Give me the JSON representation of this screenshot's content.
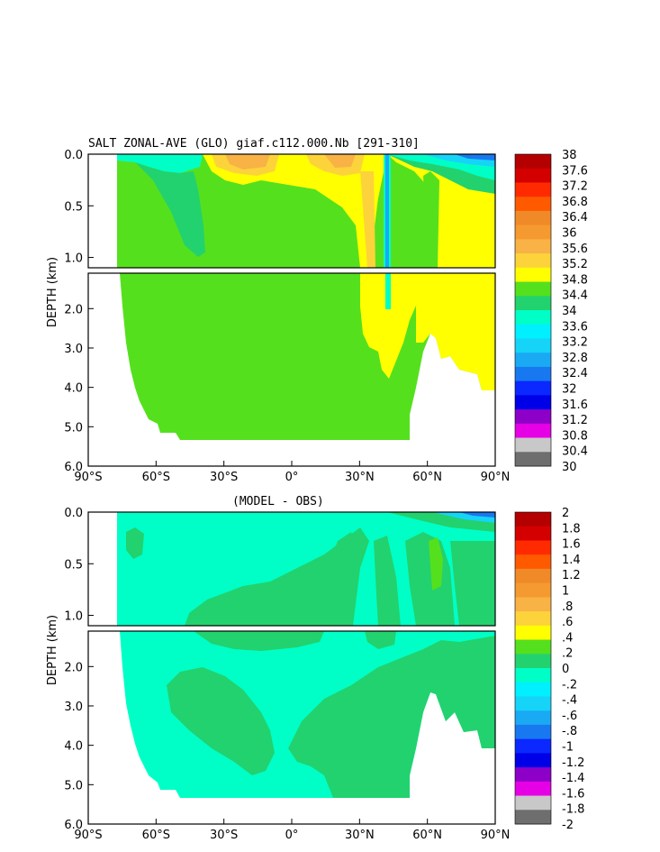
{
  "chart_data": [
    {
      "type": "heatmap",
      "title": "SALT ZONAL-AVE (GLO) giaf.c112.000.Nb [291-310]",
      "ylabel": "DEPTH (km)",
      "x_ticks": [
        "90°S",
        "60°S",
        "30°S",
        "0°",
        "30°N",
        "60°N",
        "90°N"
      ],
      "y_ticks_upper": [
        "0.0",
        "0.5",
        "1.0"
      ],
      "y_ticks_lower": [
        "2.0",
        "3.0",
        "4.0",
        "5.0",
        "6.0"
      ],
      "xlim": [
        -90,
        90
      ],
      "ylim_km": [
        0,
        6
      ],
      "split_depth_km": 1.1,
      "colorbar_labels": [
        "38",
        "37.6",
        "37.2",
        "36.8",
        "36.4",
        "36",
        "35.6",
        "35.2",
        "34.8",
        "34.4",
        "34",
        "33.6",
        "33.2",
        "32.8",
        "32.4",
        "32",
        "31.6",
        "31.2",
        "30.8",
        "30.4",
        "30"
      ],
      "colorbar_colors": [
        "#b40000",
        "#d40000",
        "#ff2a00",
        "#ff5a00",
        "#f08a28",
        "#f59a30",
        "#f8b245",
        "#fdd33b",
        "#ffff00",
        "#55e01e",
        "#22d26e",
        "#00ffc6",
        "#00f0ff",
        "#16d4f8",
        "#1aaaf3",
        "#1878f0",
        "#0a28ff",
        "#0000e8",
        "#8c00c8",
        "#e600e6",
        "#c8c8c8",
        "#6e6e6e"
      ],
      "fill_color": "#55e01e"
    },
    {
      "type": "heatmap",
      "title": "(MODEL - OBS)",
      "ylabel": "DEPTH (km)",
      "x_ticks": [
        "90°S",
        "60°S",
        "30°S",
        "0°",
        "30°N",
        "60°N",
        "90°N"
      ],
      "y_ticks_upper": [
        "0.0",
        "0.5",
        "1.0"
      ],
      "y_ticks_lower": [
        "2.0",
        "3.0",
        "4.0",
        "5.0",
        "6.0"
      ],
      "xlim": [
        -90,
        90
      ],
      "ylim_km": [
        0,
        6
      ],
      "split_depth_km": 1.1,
      "colorbar_labels": [
        "2",
        "1.8",
        "1.6",
        "1.4",
        "1.2",
        "1",
        ".8",
        ".6",
        ".4",
        ".2",
        "0",
        "-.2",
        "-.4",
        "-.6",
        "-.8",
        "-1",
        "-1.2",
        "-1.4",
        "-1.6",
        "-1.8",
        "-2"
      ],
      "colorbar_colors": [
        "#b40000",
        "#d40000",
        "#ff2a00",
        "#ff5a00",
        "#f08a28",
        "#f59a30",
        "#f8b245",
        "#fdd33b",
        "#ffff00",
        "#55e01e",
        "#22d26e",
        "#00ffc6",
        "#00f0ff",
        "#16d4f8",
        "#1aaaf3",
        "#1878f0",
        "#0a28ff",
        "#0000e8",
        "#8c00c8",
        "#e600e6",
        "#c8c8c8",
        "#6e6e6e"
      ],
      "fill_color": "#00ffc6"
    }
  ]
}
